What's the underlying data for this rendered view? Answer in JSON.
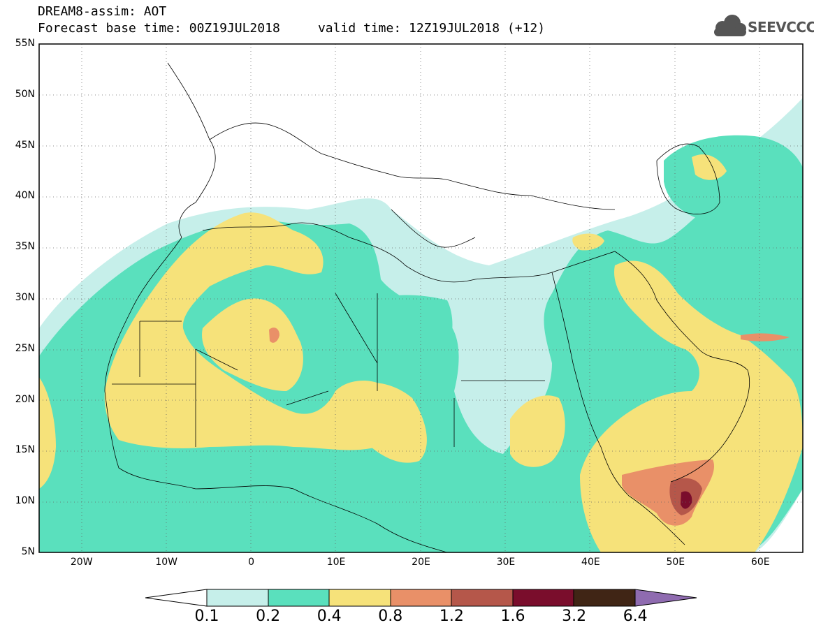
{
  "header": {
    "title_line1": "DREAM8-assim: AOT",
    "title_line2": "Forecast base time: 00Z19JUL2018     valid time: 12Z19JUL2018 (+12)",
    "logo_text": "SEEVCCC"
  },
  "map": {
    "extent": {
      "lon": [
        -25,
        65
      ],
      "lat": [
        5,
        55
      ]
    },
    "lat_labels": [
      "55N",
      "50N",
      "45N",
      "40N",
      "35N",
      "30N",
      "25N",
      "20N",
      "15N",
      "10N",
      "5N"
    ],
    "lon_labels": [
      "20W",
      "10W",
      "0",
      "10E",
      "20E",
      "30E",
      "40E",
      "50E",
      "60E"
    ],
    "gridlines": "dotted"
  },
  "legend": {
    "variable": "AOT",
    "levels": [
      "0.1",
      "0.2",
      "0.4",
      "0.8",
      "1.2",
      "1.6",
      "3.2",
      "6.4"
    ],
    "colors": [
      "#ffffff",
      "#c6efea",
      "#5ae0bd",
      "#f6e27a",
      "#e99068",
      "#b5574a",
      "#7a0d2c",
      "#402515",
      "#8f6bb0"
    ]
  }
}
